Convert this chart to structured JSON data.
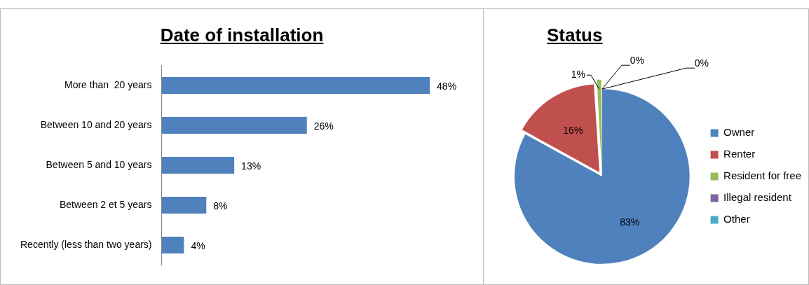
{
  "chart_data": [
    {
      "type": "bar",
      "orientation": "horizontal",
      "title": "Date of installation",
      "categories": [
        "More than  20 years",
        "Between 10 and 20 years",
        "Between 5 and 10 years",
        "Between 2 et 5 years",
        "Recently (less than two years)"
      ],
      "values": [
        48,
        26,
        13,
        8,
        4
      ],
      "value_labels": [
        "48%",
        "26%",
        "13%",
        "8%",
        "4%"
      ],
      "color": "#4f81bd",
      "tick_labels": "y",
      "legend": false
    },
    {
      "type": "pie",
      "title": "Status",
      "categories": [
        "Owner",
        "Renter",
        "Resident for free",
        "Illegal resident",
        "Other"
      ],
      "values": [
        83,
        16,
        1,
        0,
        0
      ],
      "value_labels": [
        "83%",
        "16%",
        "1%",
        "0%",
        "0%"
      ],
      "colors": [
        "#4f81bd",
        "#c0504d",
        "#9bbb59",
        "#8064a2",
        "#4bacc6"
      ],
      "legend": "right"
    }
  ]
}
